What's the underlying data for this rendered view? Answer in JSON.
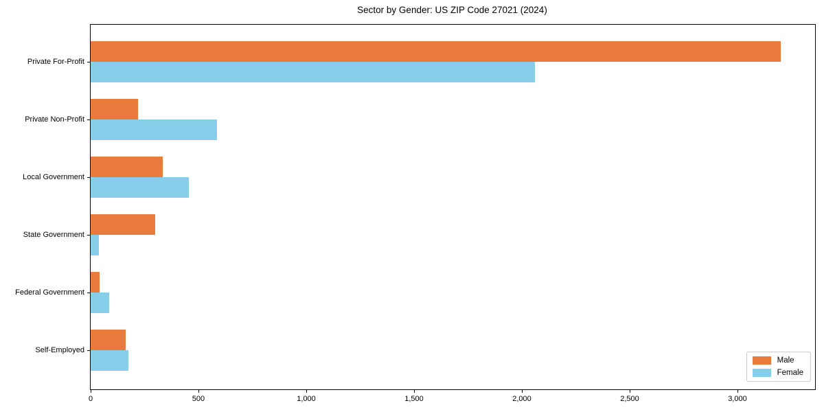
{
  "header": {
    "title": "Sector by Gender: US ZIP Code 27021 (2024)"
  },
  "chart_data": {
    "type": "bar",
    "orientation": "horizontal",
    "title": "Sector by Gender: US ZIP Code 27021 (2024)",
    "xlabel": "",
    "ylabel": "",
    "categories": [
      "Private For-Profit",
      "Private Non-Profit",
      "Local Government",
      "State Government",
      "Federal Government",
      "Self-Employed"
    ],
    "series": [
      {
        "name": "Male",
        "color": "#e97c3c",
        "values": [
          3200,
          220,
          333,
          298,
          41,
          162
        ]
      },
      {
        "name": "Female",
        "color": "#87ceeb",
        "values": [
          2060,
          585,
          457,
          38,
          86,
          175
        ]
      }
    ],
    "xlim": [
      0,
      3360
    ],
    "xticks": [
      0,
      500,
      1000,
      1500,
      2000,
      2500,
      3000
    ],
    "xtick_labels": [
      "0",
      "500",
      "1,000",
      "1,500",
      "2,000",
      "2,500",
      "3,000"
    ],
    "grid": false,
    "legend": {
      "position": "lower right",
      "entries": [
        "Male",
        "Female"
      ]
    },
    "colors": {
      "male": "#e97c3c",
      "female": "#87ceeb",
      "axis": "#000000",
      "background": "#ffffff",
      "legend_border": "#cccccc"
    }
  }
}
